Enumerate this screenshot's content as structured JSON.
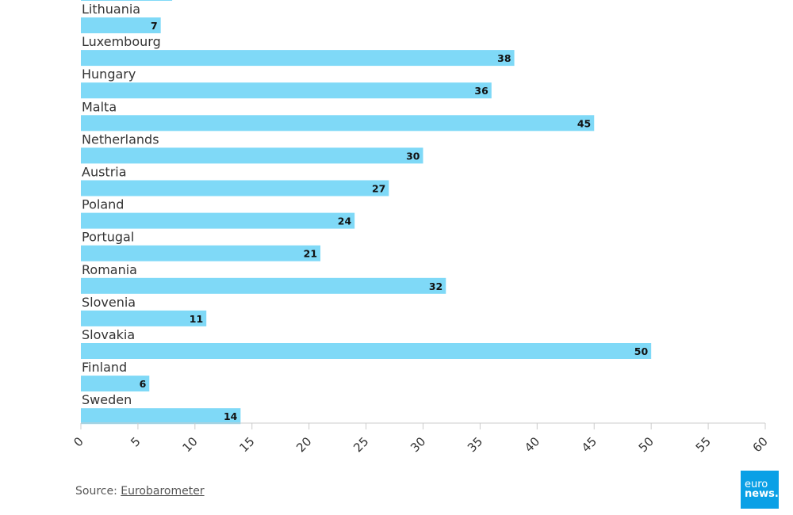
{
  "chart_data": {
    "type": "bar",
    "orientation": "horizontal",
    "categories": [
      "Lithuania",
      "Luxembourg",
      "Hungary",
      "Malta",
      "Netherlands",
      "Austria",
      "Poland",
      "Portugal",
      "Romania",
      "Slovenia",
      "Slovakia",
      "Finland",
      "Sweden"
    ],
    "values": [
      7,
      38,
      36,
      45,
      30,
      27,
      24,
      21,
      32,
      11,
      50,
      6,
      14
    ],
    "previous_bar_value": 8,
    "xlim": [
      0,
      60
    ],
    "xticks": [
      0,
      5,
      10,
      15,
      20,
      25,
      30,
      35,
      40,
      45,
      50,
      55,
      60
    ],
    "bar_color": "#7fd9f7",
    "title": "",
    "xlabel": "",
    "ylabel": "",
    "grid": false,
    "legend": "none"
  },
  "footer": {
    "source_prefix": "Source: ",
    "source_link": "Eurobarometer"
  },
  "logo": {
    "line1": "euro",
    "line2": "news."
  }
}
